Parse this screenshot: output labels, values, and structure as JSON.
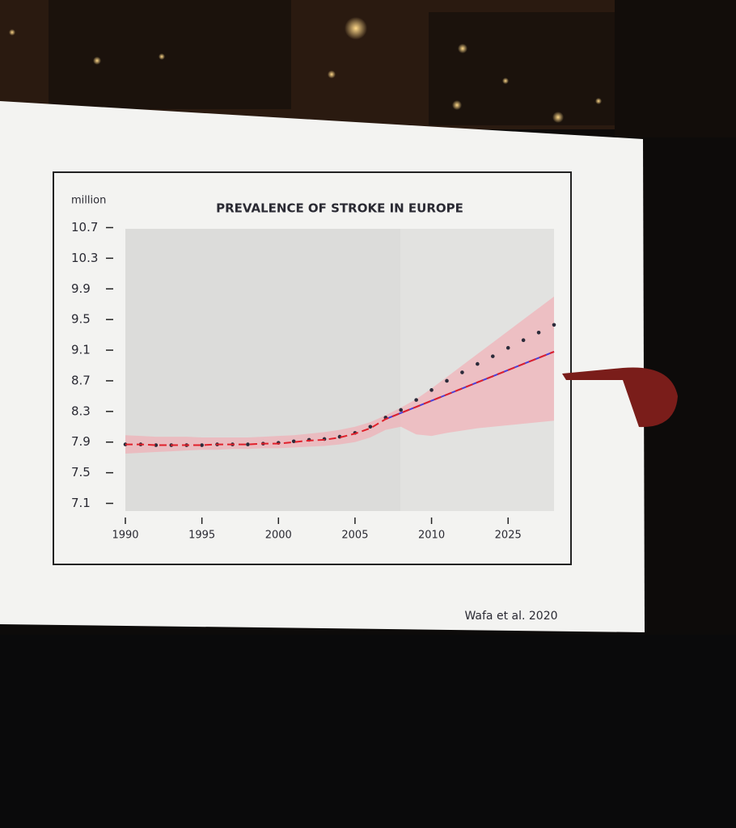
{
  "chart_data": {
    "type": "line",
    "title": "PREVALENCE OF STROKE IN EUROPE",
    "y_unit_label": "million",
    "source": "Wafa et al.  2020",
    "categories": [
      "1990",
      null,
      null,
      null,
      null,
      "1995",
      null,
      null,
      null,
      null,
      "2000",
      null,
      null,
      null,
      null,
      "2005",
      null,
      null,
      null,
      null,
      "2010",
      null,
      null,
      null,
      null,
      "2025",
      null,
      null,
      null
    ],
    "series": [
      {
        "style": "dots",
        "color": "#2b2b3a",
        "values": [
          7.87,
          7.87,
          7.86,
          7.86,
          7.86,
          7.86,
          7.87,
          7.87,
          7.87,
          7.88,
          7.89,
          7.91,
          7.93,
          7.94,
          7.97,
          8.02,
          8.1,
          8.22,
          8.32,
          8.45,
          8.58,
          8.7,
          8.81,
          8.92,
          9.02,
          9.13,
          9.23,
          9.33,
          9.43
        ]
      },
      {
        "style": "solid",
        "color": "#4a3fd8",
        "values": [
          null,
          null,
          null,
          null,
          null,
          null,
          null,
          null,
          null,
          null,
          null,
          null,
          null,
          null,
          null,
          null,
          null,
          8.2,
          8.28,
          8.36,
          8.44,
          8.52,
          8.6,
          8.68,
          8.76,
          8.84,
          8.92,
          9.0,
          9.08
        ]
      },
      {
        "style": "dashed",
        "color": "#e0202a",
        "values": [
          7.87,
          7.87,
          7.86,
          7.86,
          7.86,
          7.86,
          7.87,
          7.87,
          7.87,
          7.88,
          7.88,
          7.9,
          7.92,
          7.93,
          7.96,
          8.01,
          8.08,
          8.2,
          8.28,
          8.36,
          8.44,
          8.52,
          8.6,
          8.68,
          8.76,
          8.84,
          8.92,
          9.0,
          9.08
        ]
      }
    ],
    "band": {
      "color": "#f5a3ab",
      "upper": [
        7.99,
        7.98,
        7.97,
        7.97,
        7.97,
        7.96,
        7.96,
        7.96,
        7.96,
        7.97,
        7.98,
        7.99,
        8.01,
        8.03,
        8.06,
        8.1,
        8.16,
        8.25,
        8.35,
        8.46,
        8.6,
        8.75,
        8.9,
        9.05,
        9.2,
        9.35,
        9.5,
        9.65,
        9.8
      ],
      "lower": [
        7.75,
        7.76,
        7.77,
        7.78,
        7.79,
        7.8,
        7.8,
        7.81,
        7.81,
        7.82,
        7.82,
        7.83,
        7.84,
        7.85,
        7.87,
        7.9,
        7.96,
        8.06,
        8.1,
        8.0,
        7.98,
        8.02,
        8.05,
        8.08,
        8.1,
        8.12,
        8.14,
        8.16,
        8.18
      ]
    },
    "ylim": [
      7.0,
      10.8
    ],
    "yticks": [
      7.1,
      7.5,
      7.9,
      8.3,
      8.7,
      9.1,
      9.5,
      9.9,
      10.3,
      10.7
    ],
    "grid": false
  }
}
